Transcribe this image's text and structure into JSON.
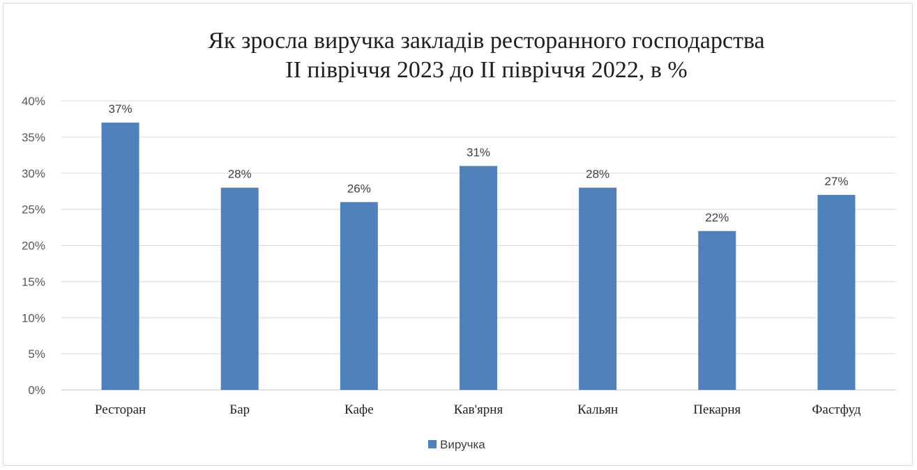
{
  "chart_data": {
    "type": "bar",
    "title": [
      "Як зросла виручка закладів ресторанного господарства",
      "ІІ півріччя 2023 до ІІ півріччя 2022, в %"
    ],
    "categories": [
      "Ресторан",
      "Бар",
      "Кафе",
      "Кав'ярня",
      "Кальян",
      "Пекарня",
      "Фастфуд"
    ],
    "series": [
      {
        "name": "Виручка",
        "values": [
          37,
          28,
          26,
          31,
          28,
          22,
          27
        ],
        "color": "#4f81bd"
      }
    ],
    "data_labels": [
      "37%",
      "28%",
      "26%",
      "31%",
      "28%",
      "22%",
      "27%"
    ],
    "ylim": [
      0,
      40
    ],
    "yticks": [
      0,
      5,
      10,
      15,
      20,
      25,
      30,
      35,
      40
    ],
    "ytick_labels": [
      "0%",
      "5%",
      "10%",
      "15%",
      "20%",
      "25%",
      "30%",
      "35%",
      "40%"
    ],
    "xlabel": "",
    "ylabel": "",
    "grid": true,
    "legend": "bottom"
  }
}
